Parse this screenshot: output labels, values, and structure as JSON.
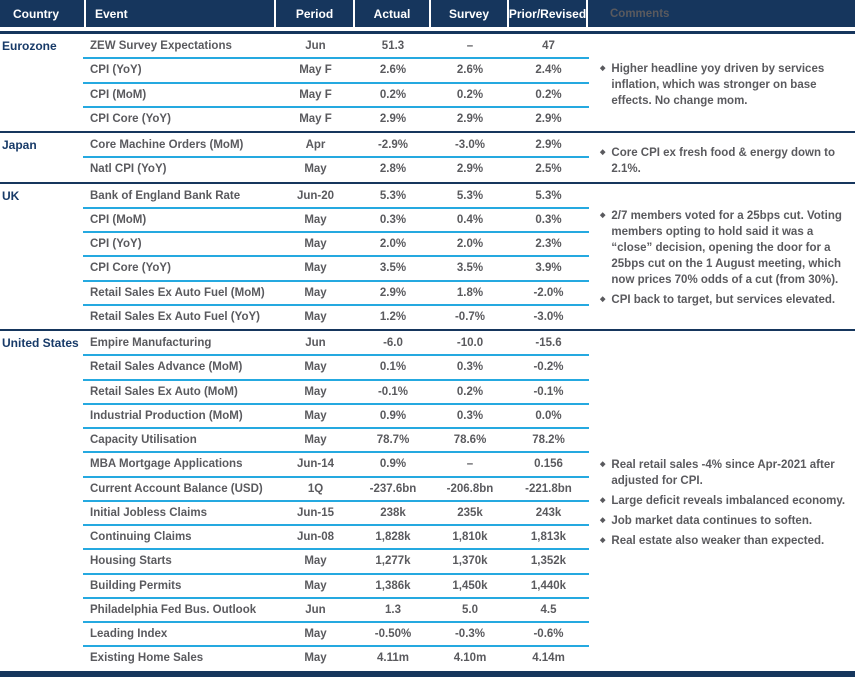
{
  "header": {
    "columns": [
      "Country",
      "Event",
      "Period",
      "Actual",
      "Survey",
      "Prior/Revised",
      "Comments"
    ]
  },
  "colors": {
    "navy": "#16365d",
    "cyan_separator": "#25a9e0",
    "country_text": "#173a68",
    "data_text": "#5a5a5e",
    "header_text": "#ffffff"
  },
  "sections": [
    {
      "country": "Eurozone",
      "rows": [
        {
          "event": "ZEW Survey Expectations",
          "period": "Jun",
          "actual": "51.3",
          "survey": "–",
          "prior": "47"
        },
        {
          "event": "CPI (YoY)",
          "period": "May F",
          "actual": "2.6%",
          "survey": "2.6%",
          "prior": "2.4%"
        },
        {
          "event": "CPI (MoM)",
          "period": "May F",
          "actual": "0.2%",
          "survey": "0.2%",
          "prior": "0.2%"
        },
        {
          "event": "CPI Core (YoY)",
          "period": "May F",
          "actual": "2.9%",
          "survey": "2.9%",
          "prior": "2.9%"
        }
      ],
      "comments": [
        "Higher headline yoy driven by services inflation, which was stronger on base effects. No change mom."
      ]
    },
    {
      "country": "Japan",
      "rows": [
        {
          "event": "Core Machine Orders (MoM)",
          "period": "Apr",
          "actual": "-2.9%",
          "survey": "-3.0%",
          "prior": "2.9%"
        },
        {
          "event": "Natl CPI (YoY)",
          "period": "May",
          "actual": "2.8%",
          "survey": "2.9%",
          "prior": "2.5%"
        }
      ],
      "comments": [
        "Core CPI ex fresh food & energy down to 2.1%."
      ]
    },
    {
      "country": "UK",
      "rows": [
        {
          "event": "Bank of England Bank Rate",
          "period": "Jun-20",
          "actual": "5.3%",
          "survey": "5.3%",
          "prior": "5.3%"
        },
        {
          "event": "CPI (MoM)",
          "period": "May",
          "actual": "0.3%",
          "survey": "0.4%",
          "prior": "0.3%"
        },
        {
          "event": "CPI (YoY)",
          "period": "May",
          "actual": "2.0%",
          "survey": "2.0%",
          "prior": "2.3%"
        },
        {
          "event": "CPI Core (YoY)",
          "period": "May",
          "actual": "3.5%",
          "survey": "3.5%",
          "prior": "3.9%"
        },
        {
          "event": "Retail Sales Ex Auto Fuel (MoM)",
          "period": "May",
          "actual": "2.9%",
          "survey": "1.8%",
          "prior": "-2.0%"
        },
        {
          "event": "Retail Sales Ex Auto Fuel (YoY)",
          "period": "May",
          "actual": "1.2%",
          "survey": "-0.7%",
          "prior": "-3.0%"
        }
      ],
      "comments": [
        "2/7 members voted for a 25bps cut. Voting members opting to hold said it was a “close” decision, opening the door for a 25bps cut on the 1 August meeting, which now prices 70% odds of a cut (from 30%).",
        "CPI back to target, but services elevated."
      ]
    },
    {
      "country": "United States",
      "rows": [
        {
          "event": "Empire Manufacturing",
          "period": "Jun",
          "actual": "-6.0",
          "survey": "-10.0",
          "prior": "-15.6"
        },
        {
          "event": "Retail Sales Advance (MoM)",
          "period": "May",
          "actual": "0.1%",
          "survey": "0.3%",
          "prior": "-0.2%"
        },
        {
          "event": "Retail Sales Ex Auto (MoM)",
          "period": "May",
          "actual": "-0.1%",
          "survey": "0.2%",
          "prior": "-0.1%"
        },
        {
          "event": "Industrial Production (MoM)",
          "period": "May",
          "actual": "0.9%",
          "survey": "0.3%",
          "prior": "0.0%"
        },
        {
          "event": "Capacity Utilisation",
          "period": "May",
          "actual": "78.7%",
          "survey": "78.6%",
          "prior": "78.2%"
        },
        {
          "event": "MBA Mortgage Applications",
          "period": "Jun-14",
          "actual": "0.9%",
          "survey": "–",
          "prior": "0.156"
        },
        {
          "event": "Current Account Balance (USD)",
          "period": "1Q",
          "actual": "-237.6bn",
          "survey": "-206.8bn",
          "prior": "-221.8bn"
        },
        {
          "event": "Initial Jobless Claims",
          "period": "Jun-15",
          "actual": "238k",
          "survey": "235k",
          "prior": "243k"
        },
        {
          "event": "Continuing Claims",
          "period": "Jun-08",
          "actual": "1,828k",
          "survey": "1,810k",
          "prior": "1,813k"
        },
        {
          "event": "Housing Starts",
          "period": "May",
          "actual": "1,277k",
          "survey": "1,370k",
          "prior": "1,352k"
        },
        {
          "event": "Building Permits",
          "period": "May",
          "actual": "1,386k",
          "survey": "1,450k",
          "prior": "1,440k"
        },
        {
          "event": "Philadelphia Fed Bus. Outlook",
          "period": "Jun",
          "actual": "1.3",
          "survey": "5.0",
          "prior": "4.5"
        },
        {
          "event": "Leading Index",
          "period": "May",
          "actual": "-0.50%",
          "survey": "-0.3%",
          "prior": "-0.6%"
        },
        {
          "event": "Existing Home Sales",
          "period": "May",
          "actual": "4.11m",
          "survey": "4.10m",
          "prior": "4.14m"
        }
      ],
      "comments": [
        "Real retail sales -4% since Apr-2021 after adjusted for CPI.",
        "Large deficit reveals imbalanced economy.",
        "Job market data continues to soften.",
        "Real estate also weaker than expected."
      ]
    }
  ]
}
